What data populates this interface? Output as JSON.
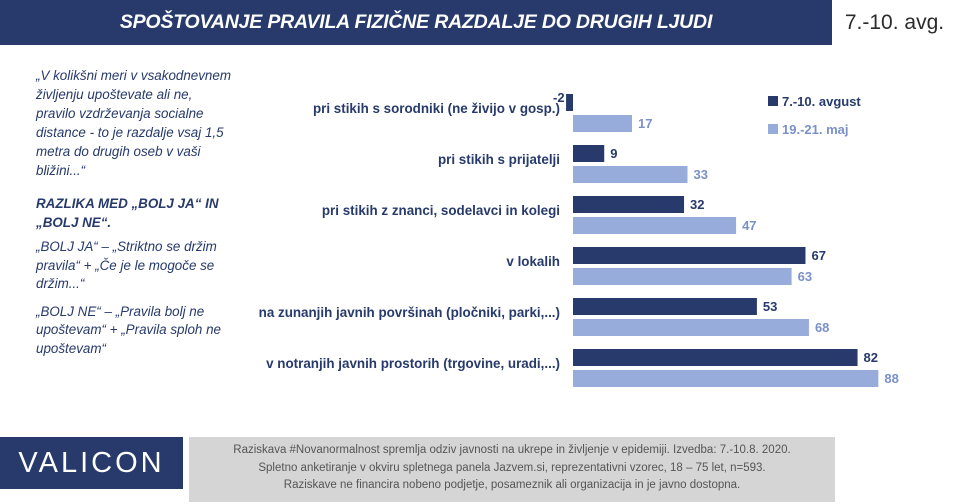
{
  "header": {
    "title": "SPOŠTOVANJE PRAVILA FIZIČNE RAZDALJE DO DRUGIH LJUDI",
    "period": "7.-10. avg."
  },
  "left_panel": {
    "question": "„V kolikšni meri v vsakodnevnem življenju upoštevate ali ne, pravilo vzdrževanja socialne distance - to je razdalje vsaj 1,5 metra do drugih oseb v vaši bližini...“",
    "heading": "RAZLIKA MED „BOLJ JA“ IN „BOLJ NE“.",
    "def_yes": "„BOLJ JA“ – „Striktno se držim pravila“ + „Če je le mogoče se držim...“",
    "def_no": "„BOLJ NE“ – „Pravila bolj ne upoštevam“ + „Pravila sploh ne upoštevam“"
  },
  "chart_data": {
    "type": "bar",
    "orientation": "horizontal",
    "categories": [
      "pri stikih s sorodniki (ne živijo v gosp.)",
      "pri stikih s prijatelji",
      "pri stikih z znanci, sodelavci in kolegi",
      "v lokalih",
      "na zunanjih javnih površinah (pločniki, parki,...)",
      "v notranjih javnih prostorih (trgovine, uradi,...)"
    ],
    "series": [
      {
        "name": "7.-10. avgust",
        "values": [
          -2,
          9,
          32,
          67,
          53,
          82
        ],
        "color": "#273a6b"
      },
      {
        "name": "19.-21. maj",
        "values": [
          17,
          33,
          47,
          63,
          68,
          88
        ],
        "color": "#98acdc"
      }
    ],
    "legend_position": "top-right",
    "grid": false,
    "data_labels": true
  },
  "footer": {
    "logo": "VALICON",
    "line1": "Raziskava #Novanormalnost spremlja odziv javnosti na ukrepe in življenje v epidemiji. Izvedba: 7.-10.8. 2020.",
    "line2": "Spletno anketiranje v okviru spletnega panela Jazvem.si, reprezentativni vzorec, 18 – 75 let, n=593.",
    "line3": "Raziskave ne financira nobeno podjetje, posameznik ali organizacija in je javno dostopna."
  }
}
